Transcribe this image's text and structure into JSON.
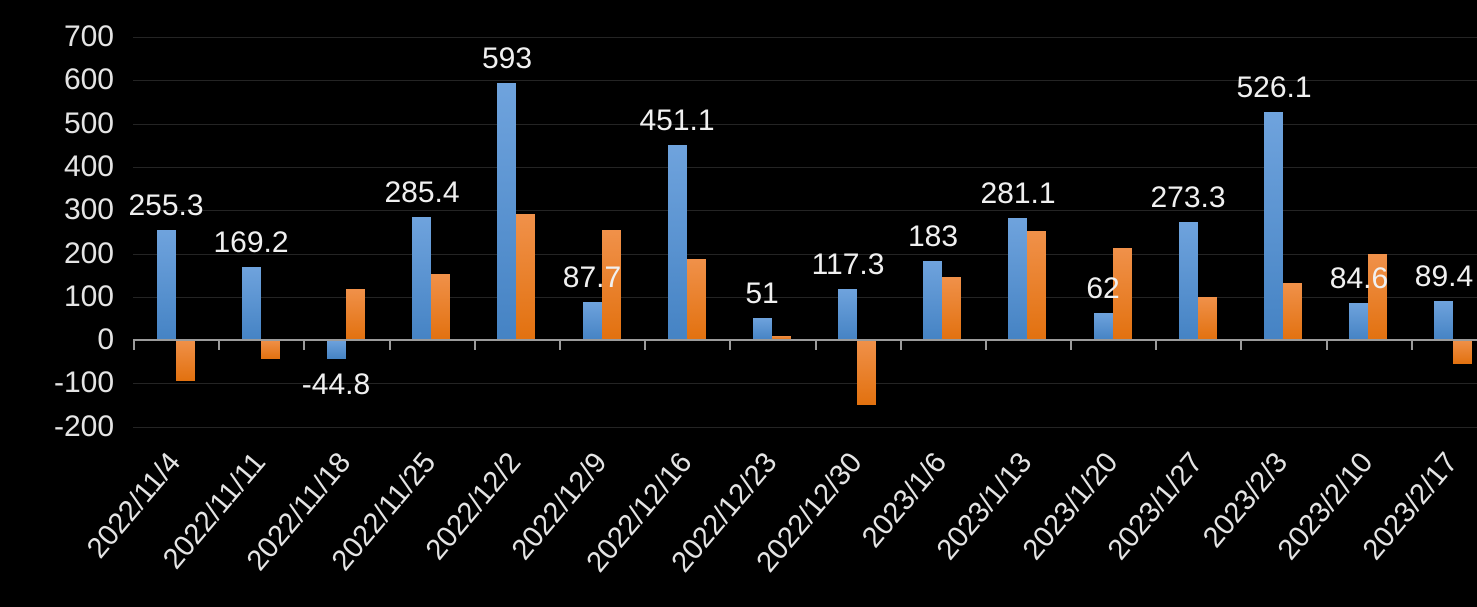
{
  "chart_data": {
    "type": "bar",
    "title": "",
    "legend": "none",
    "grid": true,
    "background_color": "#000000",
    "xlabel": "",
    "ylabel": "",
    "ylim": [
      -200,
      700
    ],
    "ytick_values": [
      700,
      600,
      500,
      400,
      300,
      200,
      100,
      0,
      -100,
      -200
    ],
    "ytick_labels": [
      "700",
      "600",
      "500",
      "400",
      "300",
      "200",
      "100",
      "0",
      "-100",
      "-200"
    ],
    "categories": [
      "2022/11/4",
      "2022/11/11",
      "2022/11/18",
      "2022/11/25",
      "2022/12/2",
      "2022/12/9",
      "2022/12/16",
      "2022/12/23",
      "2022/12/30",
      "2023/1/6",
      "2023/1/13",
      "2023/1/20",
      "2023/1/27",
      "2023/2/3",
      "2023/2/10",
      "2023/2/17"
    ],
    "series": [
      {
        "name": "blue-series",
        "color_top": "#6FA3DD",
        "color_bottom": "#4583C4",
        "show_labels": true,
        "values": [
          255.3,
          169.2,
          -44.8,
          285.4,
          593,
          87.7,
          451.1,
          51,
          117.3,
          183,
          281.1,
          62,
          273.3,
          526.1,
          84.6,
          89.4
        ],
        "labels": [
          "255.3",
          "169.2",
          "-44.8",
          "285.4",
          "593",
          "87.7",
          "451.1",
          "51",
          "117.3",
          "183",
          "281.1",
          "62",
          "273.3",
          "526.1",
          "84.6",
          "89.4"
        ]
      },
      {
        "name": "orange-series",
        "color_top": "#F0914A",
        "color_bottom": "#E2710F",
        "show_labels": false,
        "values": [
          -95,
          -43,
          117,
          153,
          291,
          255,
          188,
          10,
          -150,
          145,
          252,
          213,
          100,
          133,
          200,
          -55
        ]
      }
    ],
    "colors": {
      "grid_color": "#242424",
      "axis_color": "#9B9B9B",
      "axis_label_color": "#E4E4E4",
      "data_label_color": "#F0F0F0"
    }
  }
}
